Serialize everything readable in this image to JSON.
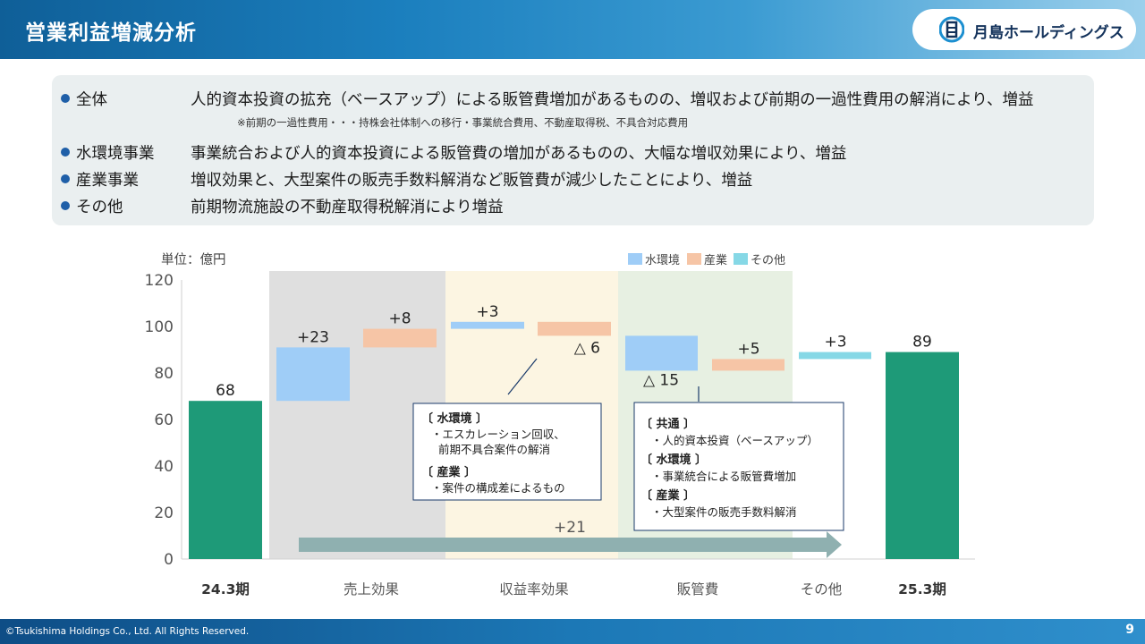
{
  "header": {
    "title": "営業利益増減分析",
    "company": "月島ホールディングス"
  },
  "summary": {
    "rows": [
      {
        "label": "全体",
        "text": "人的資本投資の拡充（ベースアップ）による販管費増加があるものの、増収および前期の一過性費用の解消により、増益"
      },
      {
        "label": "水環境事業",
        "text": "事業統合および人的資本投資による販管費の増加があるものの、大幅な増収効果により、増益"
      },
      {
        "label": "産業事業",
        "text": "増収効果と、大型案件の販売手数料解消など販管費が減少したことにより、増益"
      },
      {
        "label": "その他",
        "text": "前期物流施設の不動産取得税解消により増益"
      }
    ],
    "note": "※前期の一過性費用・・・持株会社体制への移行・事業統合費用、不動産取得税、不具合対応費用"
  },
  "chart_data": {
    "type": "bar",
    "unit_label": "単位：億円",
    "ylim": [
      0,
      120
    ],
    "yticks": [
      "0",
      "20",
      "40",
      "60",
      "80",
      "100",
      "120"
    ],
    "legend": [
      "水環境",
      "産業",
      "その他"
    ],
    "legend_position": "top-right",
    "categories": [
      "24.3期",
      "売上効果",
      "収益率効果",
      "販管費",
      "その他",
      "25.3期"
    ],
    "bars": [
      {
        "category": "24.3期",
        "kind": "total",
        "start": 0,
        "end": 68,
        "label": "68"
      },
      {
        "category": "売上効果",
        "kind": "水環境",
        "start": 68,
        "end": 91,
        "label": "+23"
      },
      {
        "category": "売上効果",
        "kind": "産業",
        "start": 91,
        "end": 99,
        "label": "+8"
      },
      {
        "category": "収益率効果",
        "kind": "水環境",
        "start": 99,
        "end": 102,
        "label": "+3"
      },
      {
        "category": "収益率効果",
        "kind": "産業",
        "start": 102,
        "end": 96,
        "label": "△ 6"
      },
      {
        "category": "販管費",
        "kind": "水環境",
        "start": 96,
        "end": 81,
        "label": "△ 15"
      },
      {
        "category": "販管費",
        "kind": "産業",
        "start": 81,
        "end": 86,
        "label": "+5"
      },
      {
        "category": "その他",
        "kind": "その他",
        "start": 86,
        "end": 89,
        "label": "+3"
      },
      {
        "category": "25.3期",
        "kind": "total",
        "start": 0,
        "end": 89,
        "label": "89"
      }
    ],
    "arrow_label": "+21",
    "callout1": {
      "heading1": "〔 水環境 〕",
      "line1": "・エスカレーション回収、",
      "line2": "前期不具合案件の解消",
      "heading2": "〔 産業 〕",
      "line3": "・案件の構成差によるもの"
    },
    "callout2": {
      "heading1": "〔 共通 〕",
      "line1": "・人的資本投資（ベースアップ）",
      "heading2": "〔 水環境 〕",
      "line2": "・事業統合による販管費増加",
      "heading3": "〔 産業 〕",
      "line3": "・大型案件の販売手数料解消"
    },
    "colors": {
      "total": "#1e9a78",
      "水環境": "#9fcdf7",
      "産業": "#f6c5a6",
      "その他": "#86d8e6",
      "band_sales": "#dfdfdf",
      "band_profit": "#fcf5e2",
      "band_sga": "#e7f0e2",
      "arrow": "#8fb0b0"
    }
  },
  "footer": {
    "copyright": "©Tsukishima Holdings Co., Ltd. All Rights Reserved.",
    "page": "9"
  }
}
